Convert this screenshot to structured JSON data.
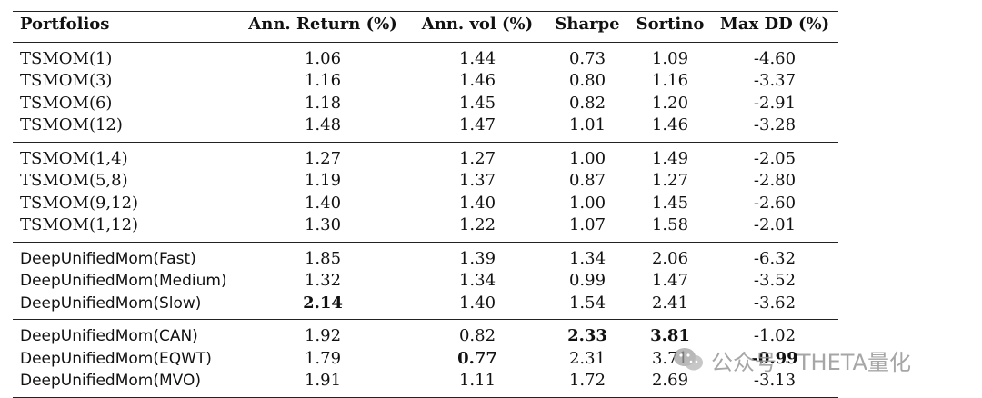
{
  "table": {
    "headers": [
      "Portfolios",
      "Ann. Return (%)",
      "Ann. vol (%)",
      "Sharpe",
      "Sortino",
      "Max DD (%)"
    ],
    "groups": [
      {
        "rows": [
          {
            "name": "TSMOM(1)",
            "values": [
              "1.06",
              "1.44",
              "0.73",
              "1.09",
              "-4.60"
            ]
          },
          {
            "name": "TSMOM(3)",
            "values": [
              "1.16",
              "1.46",
              "0.80",
              "1.16",
              "-3.37"
            ]
          },
          {
            "name": "TSMOM(6)",
            "values": [
              "1.18",
              "1.45",
              "0.82",
              "1.20",
              "-2.91"
            ]
          },
          {
            "name": "TSMOM(12)",
            "values": [
              "1.48",
              "1.47",
              "1.01",
              "1.46",
              "-3.28"
            ]
          }
        ]
      },
      {
        "rows": [
          {
            "name": "TSMOM(1,4)",
            "values": [
              "1.27",
              "1.27",
              "1.00",
              "1.49",
              "-2.05"
            ]
          },
          {
            "name": "TSMOM(5,8)",
            "values": [
              "1.19",
              "1.37",
              "0.87",
              "1.27",
              "-2.80"
            ]
          },
          {
            "name": "TSMOM(9,12)",
            "values": [
              "1.40",
              "1.40",
              "1.00",
              "1.45",
              "-2.60"
            ]
          },
          {
            "name": "TSMOM(1,12)",
            "values": [
              "1.30",
              "1.22",
              "1.07",
              "1.58",
              "-2.01"
            ]
          }
        ]
      },
      {
        "rows": [
          {
            "name": "DeepUnifiedMom(Fast)",
            "values": [
              "1.85",
              "1.39",
              "1.34",
              "2.06",
              "-6.32"
            ]
          },
          {
            "name": "DeepUnifiedMom(Medium)",
            "values": [
              "1.32",
              "1.34",
              "0.99",
              "1.47",
              "-3.52"
            ]
          },
          {
            "name": "DeepUnifiedMom(Slow)",
            "values": [
              "2.14",
              "1.40",
              "1.54",
              "2.41",
              "-3.62"
            ]
          }
        ]
      },
      {
        "rows": [
          {
            "name": "DeepUnifiedMom(CAN)",
            "values": [
              "1.92",
              "0.82",
              "2.33",
              "3.81",
              "-1.02"
            ]
          },
          {
            "name": "DeepUnifiedMom(EQWT)",
            "values": [
              "1.79",
              "0.77",
              "2.31",
              "3.71",
              "-0.99"
            ]
          },
          {
            "name": "DeepUnifiedMom(MVO)",
            "values": [
              "1.91",
              "1.11",
              "1.72",
              "2.69",
              "-3.13"
            ]
          }
        ]
      }
    ]
  },
  "watermark": {
    "text": "公众号 · THETA量化",
    "icon": "wechat-icon"
  }
}
